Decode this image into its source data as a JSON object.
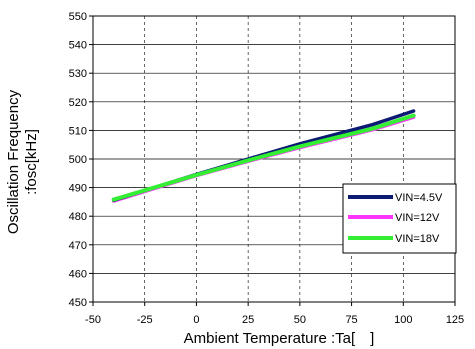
{
  "chart_data": {
    "type": "line",
    "xlabel": "Ambient Temperature :Ta[　]",
    "ylabel_lines": [
      "Oscillation Frequency",
      ":fosc[kHz]"
    ],
    "xlim": [
      -50,
      125
    ],
    "ylim": [
      450,
      550
    ],
    "x_ticks": [
      "-50",
      "-25",
      "0",
      "25",
      "50",
      "75",
      "100",
      "125"
    ],
    "y_ticks": [
      "450",
      "460",
      "470",
      "480",
      "490",
      "500",
      "510",
      "520",
      "530",
      "540",
      "550"
    ],
    "grid": true,
    "legend_position": "bottom-right",
    "series": [
      {
        "name": "VIN=4.5V",
        "color": "#0b1a72",
        "x": [
          -40,
          0,
          25,
          50,
          85,
          105
        ],
        "y": [
          485.6,
          494.6,
          500.0,
          505.3,
          512.0,
          516.8
        ]
      },
      {
        "name": "VIN=12V",
        "color": "#ff33ff",
        "x": [
          -40,
          0,
          25,
          50,
          85,
          105
        ],
        "y": [
          485.3,
          494.2,
          499.2,
          504.0,
          510.2,
          514.6
        ]
      },
      {
        "name": "VIN=18V",
        "color": "#33ee33",
        "x": [
          -40,
          0,
          25,
          50,
          85,
          105
        ],
        "y": [
          485.8,
          494.4,
          499.5,
          504.4,
          510.6,
          515.2
        ]
      }
    ]
  }
}
